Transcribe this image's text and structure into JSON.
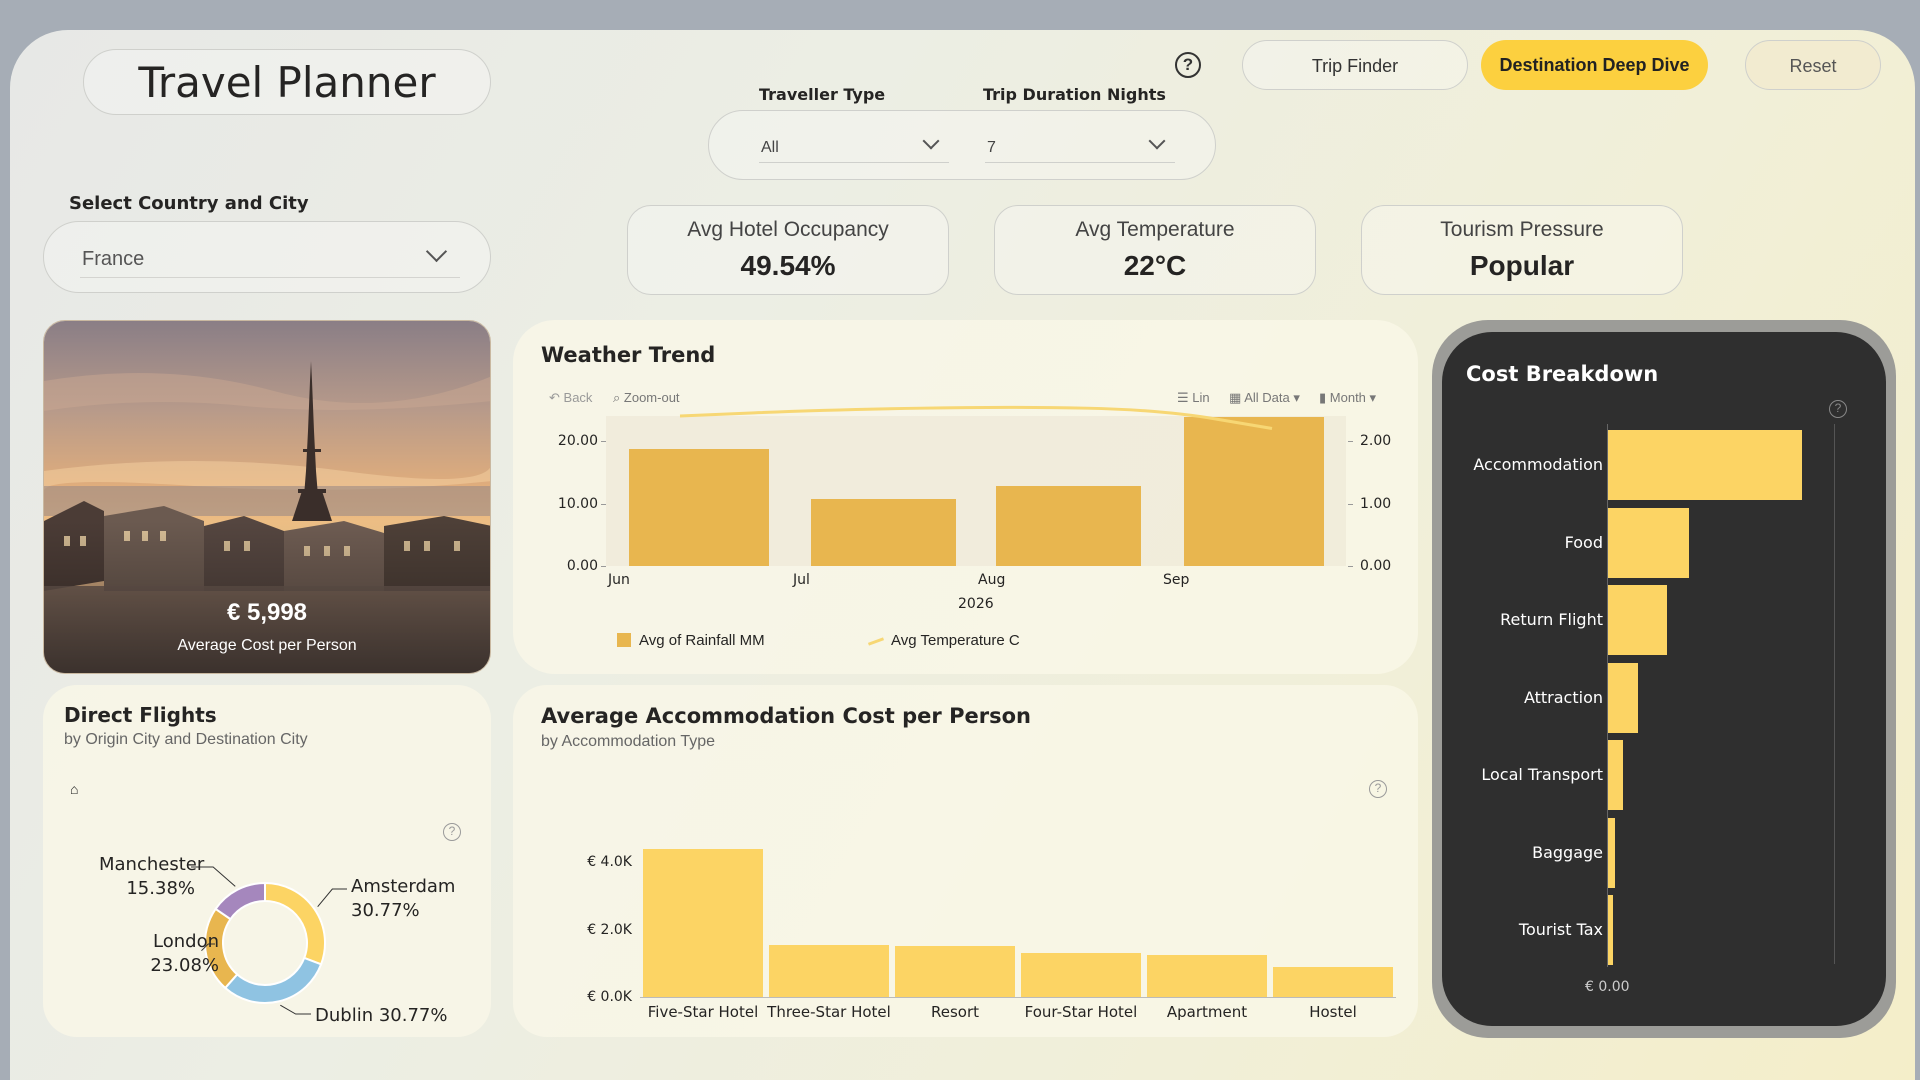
{
  "app": {
    "title": "Travel Planner"
  },
  "nav": {
    "help_icon": "question-circle-icon",
    "trip_finder": "Trip Finder",
    "deep_dive": "Destination Deep Dive",
    "reset": "Reset"
  },
  "filters": {
    "traveller_type": {
      "label": "Traveller Type",
      "value": "All"
    },
    "trip_duration": {
      "label": "Trip Duration Nights",
      "value": "7"
    }
  },
  "country_select": {
    "label": "Select Country and City",
    "value": "France"
  },
  "kpis": [
    {
      "label": "Avg Hotel Occupancy",
      "value": "49.54%"
    },
    {
      "label": "Avg Temperature",
      "value": "22°C"
    },
    {
      "label": "Tourism Pressure",
      "value": "Popular"
    }
  ],
  "hero": {
    "amount": "€ 5,998",
    "caption": "Average Cost per Person"
  },
  "colors": {
    "accent": "#fcd464",
    "bar": "#e8b64f",
    "line": "#f7d774",
    "dark_panel": "#2f2f2f",
    "active_nav": "#fcd03f"
  },
  "weather": {
    "title": "Weather Trend",
    "toolbar": {
      "back": "Back",
      "zoom": "Zoom-out",
      "scale": "Lin",
      "range": "All Data",
      "period": "Month"
    },
    "chart_data": {
      "type": "bar",
      "categories": [
        "Jun",
        "Jul",
        "Aug",
        "Sep"
      ],
      "x_group_label": "2026",
      "series": [
        {
          "name": "Avg of Rainfall MM",
          "type": "bar",
          "values": [
            18.8,
            10.8,
            12.8,
            23.8
          ]
        },
        {
          "name": "Avg Temperature C",
          "type": "line",
          "x": [
            0.4,
            1.2,
            2.2,
            3.0,
            3.6
          ],
          "values": [
            2.4,
            2.5,
            2.55,
            2.5,
            2.2
          ]
        }
      ],
      "y_left": {
        "ticks": [
          "20.00",
          "10.00",
          "0.00"
        ],
        "lim": [
          0,
          24
        ]
      },
      "y_right": {
        "ticks": [
          "2.00",
          "1.00",
          "0.00"
        ],
        "lim": [
          0,
          2.4
        ]
      }
    }
  },
  "flights": {
    "title": "Direct Flights",
    "subtitle": "by Origin City and Destination City",
    "chart_data": {
      "type": "pie",
      "slices": [
        {
          "label": "Amsterdam",
          "pct": "30.77%",
          "value": 30.77,
          "color": "#fcd464"
        },
        {
          "label": "Dublin",
          "pct": "30.77%",
          "value": 30.77,
          "color": "#8fc3e2"
        },
        {
          "label": "London",
          "pct": "23.08%",
          "value": 23.08,
          "color": "#e8b64f"
        },
        {
          "label": "Manchester",
          "pct": "15.38%",
          "value": 15.38,
          "color": "#a587bd"
        }
      ]
    }
  },
  "accommodation": {
    "title": "Average Accommodation Cost per Person",
    "subtitle": "by Accommodation Type",
    "chart_data": {
      "type": "bar",
      "categories": [
        "Five-Star Hotel",
        "Three-Star Hotel",
        "Resort",
        "Four-Star Hotel",
        "Apartment",
        "Hostel"
      ],
      "values": [
        4400,
        1560,
        1530,
        1300,
        1250,
        900
      ],
      "y_ticks": [
        "€ 4.0K",
        "€ 2.0K",
        "€ 0.0K"
      ],
      "ylim": [
        0,
        4400
      ]
    }
  },
  "cost": {
    "title": "Cost Breakdown",
    "chart_data": {
      "type": "bar",
      "orientation": "horizontal",
      "categories": [
        "Accommodation",
        "Food",
        "Return Flight",
        "Attraction",
        "Local Transport",
        "Baggage",
        "Tourist Tax"
      ],
      "values": [
        3100,
        1300,
        950,
        500,
        250,
        120,
        90
      ],
      "x_tick": "€ 0.00"
    }
  }
}
